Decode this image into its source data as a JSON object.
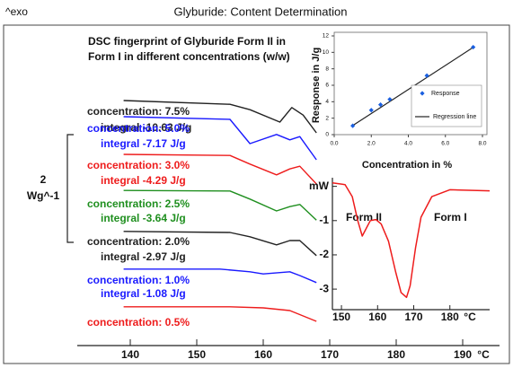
{
  "chart_data": [
    {
      "type": "line",
      "header": "^exo",
      "title": "Glyburide: Content Determination",
      "subtitle": [
        "DSC fingerprint of Glyburide Form II in",
        "Form I in different concentrations (w/w)"
      ],
      "xlabel": "°C",
      "xlim": [
        132,
        195
      ],
      "xticks": [
        140,
        150,
        160,
        170,
        180,
        190
      ],
      "ylim": [
        0,
        5.5
      ],
      "scale_bar": {
        "value": 2,
        "label": "Wg^-1"
      },
      "series": [
        {
          "name": "concentration: 7.5%",
          "annotation": "integral -10.63 J/g",
          "color": "#222222",
          "x": [
            139,
            155,
            158,
            162.5,
            164.3,
            166,
            168
          ],
          "values": [
            4.3,
            4.23,
            4.13,
            3.9,
            4.17,
            4.03,
            3.7
          ]
        },
        {
          "name": "concentration: 5.0%",
          "annotation": "integral -7.17 J/g",
          "color": "#1a1aff",
          "x": [
            139,
            155,
            158,
            162,
            164,
            165.5,
            168
          ],
          "values": [
            4.0,
            3.95,
            3.5,
            3.67,
            3.57,
            3.63,
            3.2
          ]
        },
        {
          "name": "concentration: 3.0%",
          "annotation": "integral -4.29 J/g",
          "color": "#ee1c1c",
          "x": [
            139,
            155,
            158,
            162,
            164,
            165.5,
            168
          ],
          "values": [
            3.3,
            3.28,
            3.12,
            2.92,
            3.03,
            3.08,
            2.75
          ]
        },
        {
          "name": "concentration: 2.5%",
          "annotation": "integral -3.64 J/g",
          "color": "#1f8f1f",
          "x": [
            139,
            155,
            158,
            162,
            164,
            165.5,
            168
          ],
          "values": [
            2.63,
            2.62,
            2.47,
            2.25,
            2.33,
            2.37,
            2.08
          ]
        },
        {
          "name": "concentration: 2.0%",
          "annotation": "integral -2.97 J/g",
          "color": "#222222",
          "x": [
            139,
            155,
            158,
            162,
            164,
            165.5,
            168
          ],
          "values": [
            1.87,
            1.85,
            1.77,
            1.62,
            1.7,
            1.7,
            1.42
          ]
        },
        {
          "name": "concentration: 1.0%",
          "annotation": "integral -1.08 J/g",
          "color": "#1a1aff",
          "x": [
            139,
            153.5,
            158,
            160,
            164,
            165.5,
            168
          ],
          "values": [
            1.17,
            1.17,
            1.12,
            1.08,
            1.12,
            1.05,
            0.92
          ]
        },
        {
          "name": "concentration: 0.5%",
          "color": "#ee1c1c",
          "x": [
            139,
            155,
            160,
            164,
            168
          ],
          "values": [
            0.47,
            0.47,
            0.45,
            0.4,
            0.2
          ]
        }
      ]
    },
    {
      "type": "scatter",
      "xlabel": "Concentration in %",
      "ylabel": "Response in J/g",
      "xlim": [
        0,
        8
      ],
      "xticks": [
        {
          "value": 0,
          "label": "0.0"
        },
        {
          "value": 2,
          "label": "2.0"
        },
        {
          "value": 4,
          "label": "4.0"
        },
        {
          "value": 6,
          "label": "6.0"
        },
        {
          "value": 8,
          "label": "8.0"
        }
      ],
      "ylim": [
        0,
        12
      ],
      "yticks": [
        0,
        2,
        4,
        6,
        8,
        10,
        12
      ],
      "series": [
        {
          "name": "Response",
          "color": "#1a5fe0",
          "x": [
            1,
            2,
            2.5,
            3,
            5,
            7.5
          ],
          "values": [
            1.08,
            2.97,
            3.64,
            4.29,
            7.17,
            10.63
          ]
        },
        {
          "name": "Regression line",
          "color": "#222222",
          "x": [
            1,
            7.5
          ],
          "values": [
            1.1,
            10.6
          ]
        }
      ]
    },
    {
      "type": "line",
      "xlabel": "°C",
      "annotations": [
        "Form II",
        "Form I"
      ],
      "xlim": [
        147.5,
        191
      ],
      "xticks": [
        150,
        160,
        170,
        180
      ],
      "ylim": [
        -3.6,
        0.2
      ],
      "yticks": [
        {
          "value": 0,
          "label": "mW"
        },
        -1,
        -2,
        -3
      ],
      "series": [
        {
          "color": "#ee1c1c",
          "x": [
            147.5,
            151,
            153,
            154.5,
            155.75,
            157,
            158,
            159.5,
            161,
            163,
            165,
            166.5,
            168,
            169,
            170.5,
            172,
            175,
            180,
            191
          ],
          "values": [
            0.1,
            0.05,
            -0.3,
            -1.0,
            -1.45,
            -1.2,
            -1.0,
            -0.97,
            -1.1,
            -1.6,
            -2.5,
            -3.1,
            -3.24,
            -2.9,
            -1.8,
            -0.9,
            -0.3,
            -0.1,
            -0.13
          ]
        }
      ]
    }
  ]
}
